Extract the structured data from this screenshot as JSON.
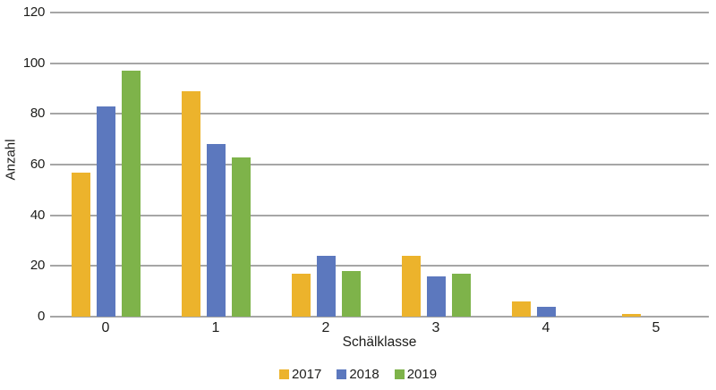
{
  "chart_data": {
    "type": "bar",
    "title": "",
    "categories": [
      "0",
      "1",
      "2",
      "3",
      "4",
      "5"
    ],
    "series": [
      {
        "name": "2017",
        "color": "#ECB32C",
        "values": [
          57,
          89,
          17,
          24,
          6,
          1
        ]
      },
      {
        "name": "2018",
        "color": "#5C78BE",
        "values": [
          83,
          68,
          24,
          16,
          4,
          0
        ]
      },
      {
        "name": "2019",
        "color": "#7EB34A",
        "values": [
          97,
          63,
          18,
          17,
          0,
          0
        ]
      }
    ],
    "xlabel": "Schälklasse",
    "ylabel": "Anzahl",
    "ylim": [
      0,
      120
    ],
    "yticks": [
      0,
      20,
      40,
      60,
      80,
      100,
      120
    ],
    "grid": true,
    "legend_position": "bottom"
  },
  "colors": {
    "gridline": "#A6A6A6",
    "text": "#1D1D1B",
    "background": "#FFFFFF"
  }
}
